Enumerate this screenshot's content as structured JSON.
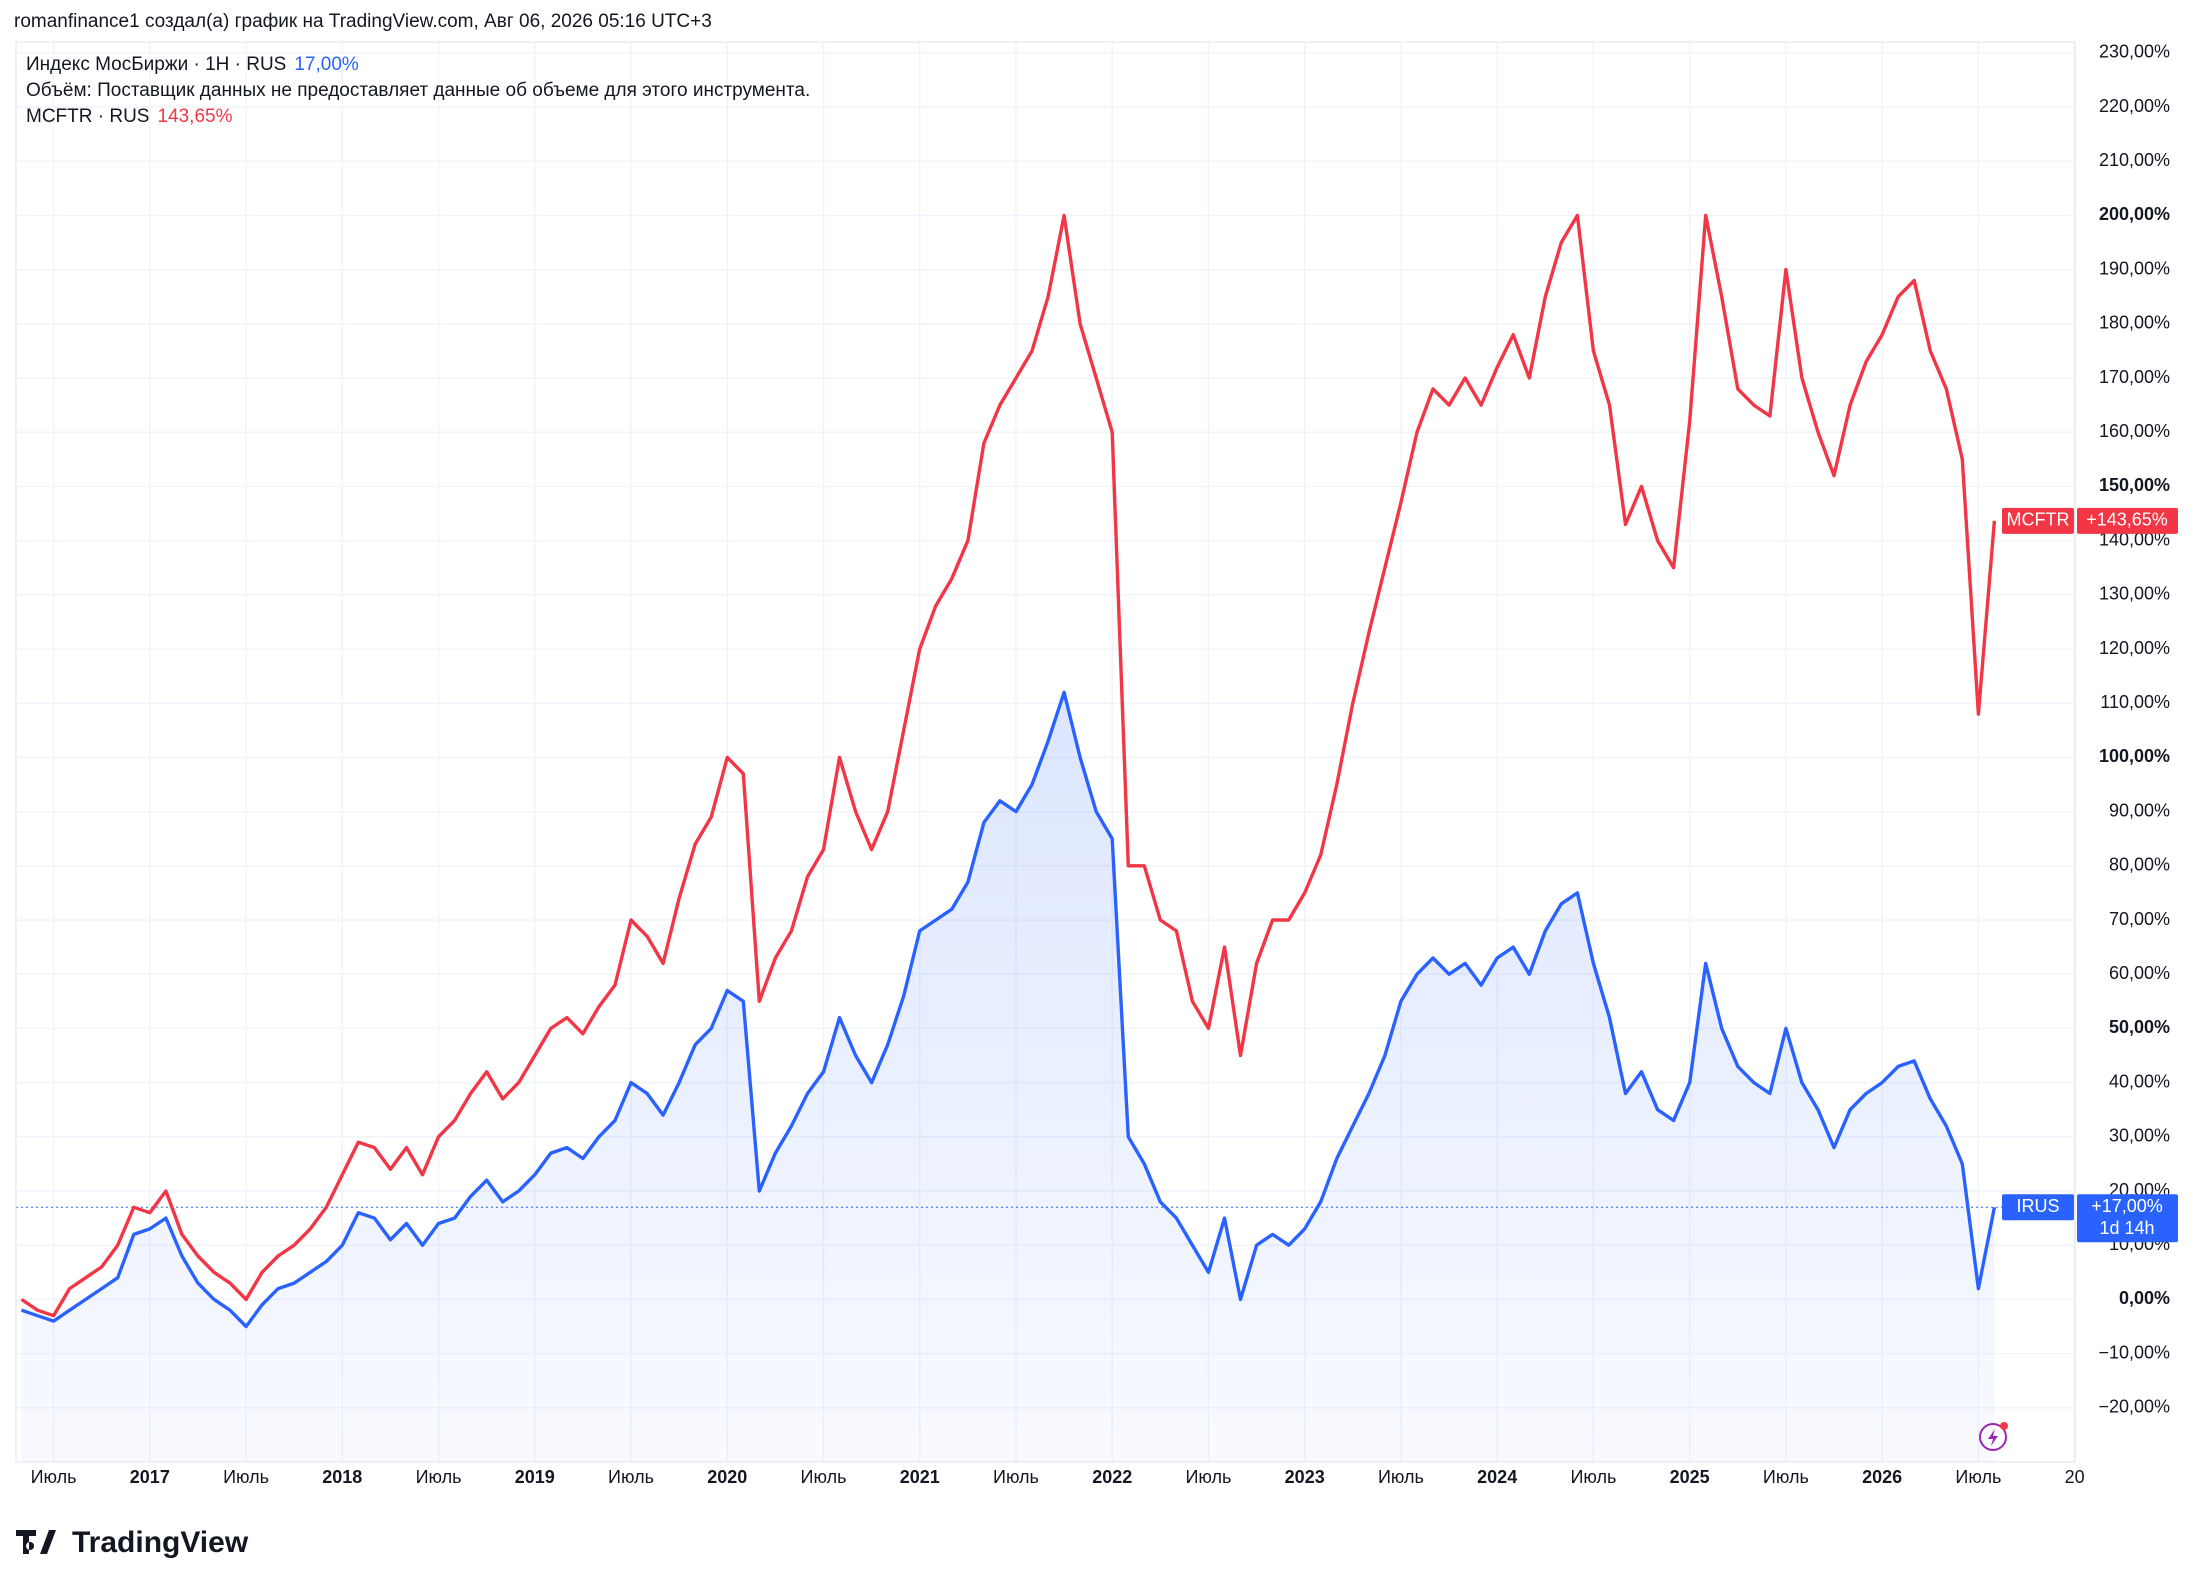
{
  "header": {
    "credit": "romanfinance1 создал(а) график на TradingView.com, Авг 06, 2026 05:16 UTC+3"
  },
  "legend": {
    "line1": "Индекс МосБиржи · 1Н · RUS",
    "line2": "Объём: Поставщик данных не предоставляет данные об объеме для этого инструмента.",
    "line3": "MCFTR · RUS"
  },
  "countdown": "1d 14h",
  "logo": "TradingView",
  "chart_data": {
    "type": "line",
    "categories": [
      null,
      null,
      "Июль",
      null,
      null,
      null,
      null,
      null,
      "2017",
      null,
      null,
      null,
      null,
      null,
      "Июль",
      null,
      null,
      null,
      null,
      null,
      "2018",
      null,
      null,
      null,
      null,
      null,
      "Июль",
      null,
      null,
      null,
      null,
      null,
      "2019",
      null,
      null,
      null,
      null,
      null,
      "Июль",
      null,
      null,
      null,
      null,
      null,
      "2020",
      null,
      null,
      null,
      null,
      null,
      "Июль",
      null,
      null,
      null,
      null,
      null,
      "2021",
      null,
      null,
      null,
      null,
      null,
      "Июль",
      null,
      null,
      null,
      null,
      null,
      "2022",
      null,
      null,
      null,
      null,
      null,
      "Июль",
      null,
      null,
      null,
      null,
      null,
      "2023",
      null,
      null,
      null,
      null,
      null,
      "Июль",
      null,
      null,
      null,
      null,
      null,
      "2024",
      null,
      null,
      null,
      null,
      null,
      "Июль",
      null,
      null,
      null,
      null,
      null,
      "2025",
      null,
      null,
      null,
      null,
      null,
      "Июль",
      null,
      null,
      null,
      null,
      null,
      "2026",
      null,
      null,
      null,
      null,
      null,
      "Июль",
      null,
      null,
      null,
      null,
      null,
      "20"
    ],
    "series": [
      {
        "name": "IRUS",
        "color": "#2962ff",
        "area": true,
        "legend_value": "17,00%",
        "tag_label": "+17,00%",
        "values": [
          -2,
          -3,
          -4,
          -2,
          0,
          2,
          4,
          12,
          13,
          15,
          8,
          3,
          0,
          -2,
          -5,
          -1,
          2,
          3,
          5,
          7,
          10,
          16,
          15,
          11,
          14,
          10,
          14,
          15,
          19,
          22,
          18,
          20,
          23,
          27,
          28,
          26,
          30,
          33,
          40,
          38,
          34,
          40,
          47,
          50,
          57,
          55,
          20,
          27,
          32,
          38,
          42,
          52,
          45,
          40,
          47,
          56,
          68,
          70,
          72,
          77,
          88,
          92,
          90,
          95,
          103,
          112,
          100,
          90,
          85,
          30,
          25,
          18,
          15,
          10,
          5,
          15,
          0,
          10,
          12,
          10,
          13,
          18,
          26,
          32,
          38,
          45,
          55,
          60,
          63,
          60,
          62,
          58,
          63,
          65,
          60,
          68,
          73,
          75,
          62,
          52,
          38,
          42,
          35,
          33,
          40,
          62,
          50,
          43,
          40,
          38,
          50,
          40,
          35,
          28,
          35,
          38,
          40,
          43,
          44,
          37,
          32,
          25,
          2,
          17,
          null,
          null,
          null,
          null,
          null
        ]
      },
      {
        "name": "MCFTR",
        "color": "#f23645",
        "area": false,
        "legend_value": "143,65%",
        "tag_label": "+143,65%",
        "values": [
          0,
          -2,
          -3,
          2,
          4,
          6,
          10,
          17,
          16,
          20,
          12,
          8,
          5,
          3,
          0,
          5,
          8,
          10,
          13,
          17,
          23,
          29,
          28,
          24,
          28,
          23,
          30,
          33,
          38,
          42,
          37,
          40,
          45,
          50,
          52,
          49,
          54,
          58,
          70,
          67,
          62,
          74,
          84,
          89,
          100,
          97,
          55,
          63,
          68,
          78,
          83,
          100,
          90,
          83,
          90,
          105,
          120,
          128,
          133,
          140,
          158,
          165,
          170,
          175,
          185,
          200,
          180,
          170,
          160,
          80,
          80,
          70,
          68,
          55,
          50,
          65,
          45,
          62,
          70,
          70,
          75,
          82,
          95,
          110,
          123,
          135,
          147,
          160,
          168,
          165,
          170,
          165,
          172,
          178,
          170,
          185,
          195,
          200,
          175,
          165,
          143,
          150,
          140,
          135,
          162,
          200,
          185,
          168,
          165,
          163,
          190,
          170,
          160,
          152,
          165,
          173,
          178,
          185,
          188,
          175,
          168,
          155,
          108,
          143.65,
          null,
          null,
          null,
          null,
          null
        ]
      }
    ],
    "ylim": [
      -30,
      232
    ],
    "yticks": [
      {
        "value": -20,
        "label": "−20,00%"
      },
      {
        "value": -10,
        "label": "−10,00%"
      },
      {
        "value": 0,
        "label": "0,00%"
      },
      {
        "value": 10,
        "label": "10,00%"
      },
      {
        "value": 20,
        "label": "20,00%"
      },
      {
        "value": 30,
        "label": "30,00%"
      },
      {
        "value": 40,
        "label": "40,00%"
      },
      {
        "value": 50,
        "label": "50,00%"
      },
      {
        "value": 60,
        "label": "60,00%"
      },
      {
        "value": 70,
        "label": "70,00%"
      },
      {
        "value": 80,
        "label": "80,00%"
      },
      {
        "value": 90,
        "label": "90,00%"
      },
      {
        "value": 100,
        "label": "100,00%"
      },
      {
        "value": 110,
        "label": "110,00%"
      },
      {
        "value": 120,
        "label": "120,00%"
      },
      {
        "value": 130,
        "label": "130,00%"
      },
      {
        "value": 140,
        "label": "140,00%"
      },
      {
        "value": 150,
        "label": "150,00%"
      },
      {
        "value": 160,
        "label": "160,00%"
      },
      {
        "value": 170,
        "label": "170,00%"
      },
      {
        "value": 180,
        "label": "180,00%"
      },
      {
        "value": 190,
        "label": "190,00%"
      },
      {
        "value": 200,
        "label": "200,00%"
      },
      {
        "value": 210,
        "label": "210,00%"
      },
      {
        "value": 220,
        "label": "220,00%"
      },
      {
        "value": 230,
        "label": "230,00%"
      }
    ],
    "grid": true
  }
}
